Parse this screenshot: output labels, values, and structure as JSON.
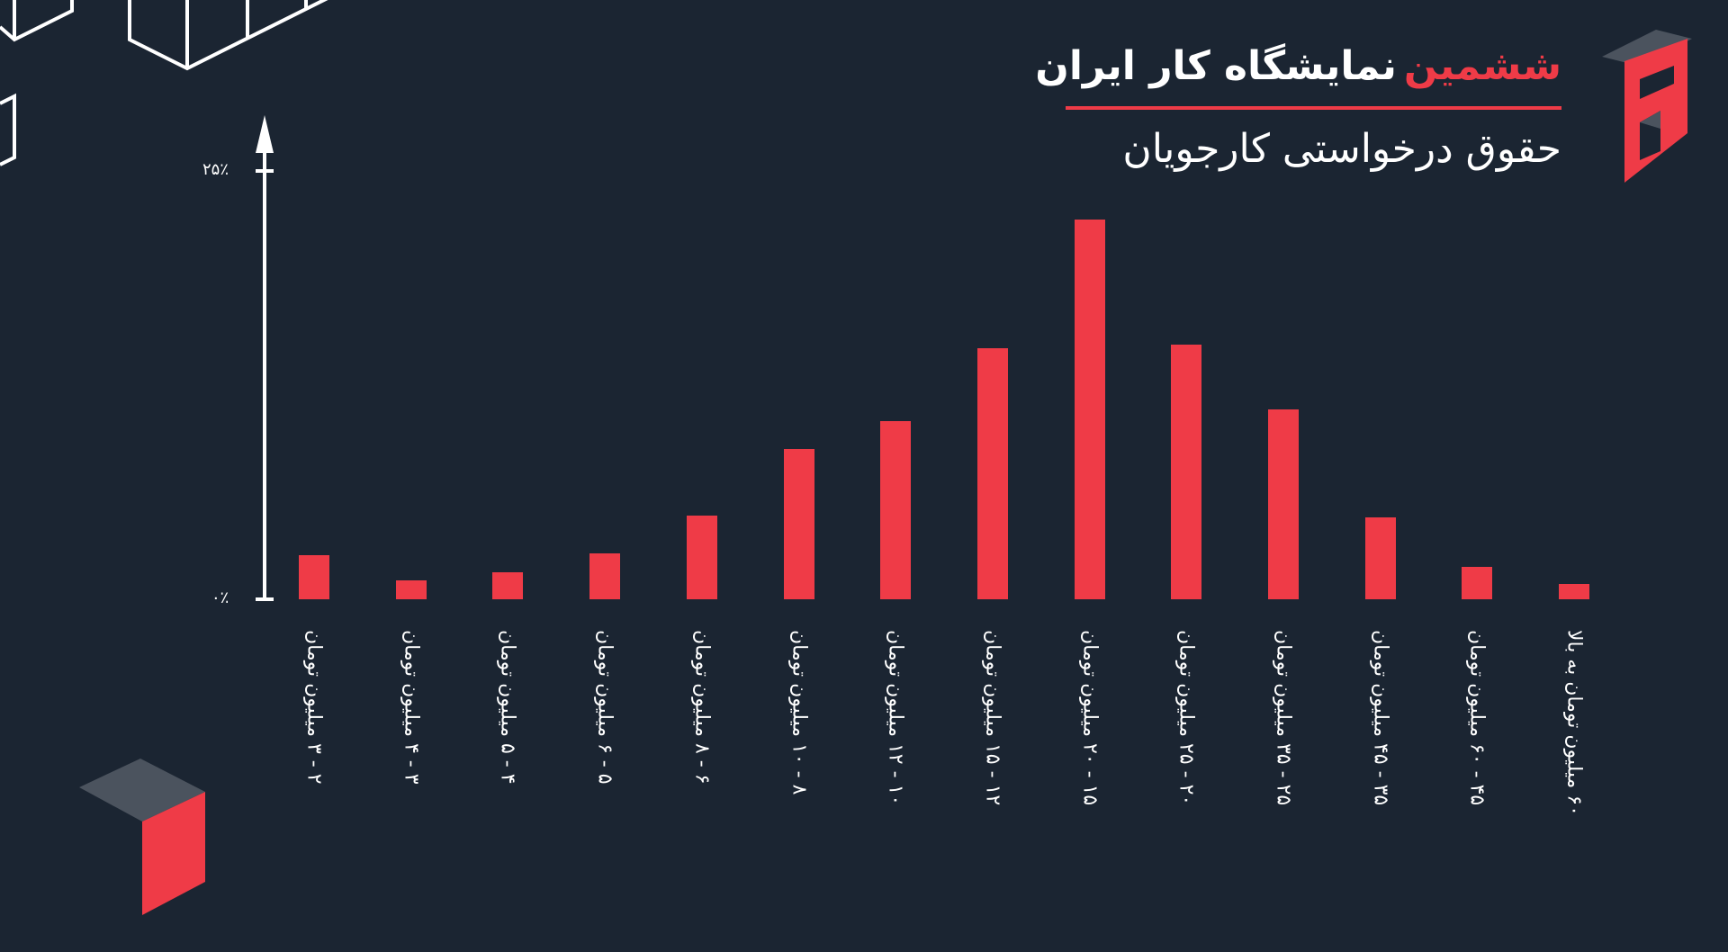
{
  "header": {
    "title_accent": "ششمین",
    "title_main": "نمایشگاه کار ایران",
    "subtitle": "حقوق درخواستی کارجویان",
    "logo_glyph": "6"
  },
  "colors": {
    "background": "#1b2532",
    "accent": "#ef3b47",
    "gray": "#4b535e",
    "text": "#ffffff"
  },
  "axis": {
    "y_top_label": "۲۵٪",
    "y_bottom_label": "۰٪"
  },
  "chart_data": {
    "type": "bar",
    "title": "ششمین نمایشگاه کار ایران — حقوق درخواستی کارجویان",
    "xlabel": "",
    "ylabel": "درصد",
    "ylim": [
      0,
      25
    ],
    "yticks": [
      "۰٪",
      "۲۵٪"
    ],
    "grid": false,
    "legend": null,
    "categories": [
      "۲ - ۳ میلیون تومان",
      "۳ - ۴ میلیون تومان",
      "۴ - ۵ میلیون تومان",
      "۵ - ۶ میلیون تومان",
      "۶ - ۸ میلیون تومان",
      "۸ - ۱۰ میلیون تومان",
      "۱۰ - ۱۲ میلیون تومان",
      "۱۲ - ۱۵ میلیون تومان",
      "۱۵ - ۲۰ میلیون تومان",
      "۲۰ - ۲۵ میلیون تومان",
      "۲۵ - ۳۵ میلیون تومان",
      "۳۵ - ۴۵ میلیون تومان",
      "۴۵ - ۶۰ میلیون تومان",
      "۶۰ میلیون تومان به بالا"
    ],
    "values": [
      2.6,
      1.1,
      1.6,
      2.7,
      4.9,
      8.8,
      10.4,
      14.7,
      22.2,
      14.9,
      11.1,
      4.8,
      1.9,
      0.9
    ]
  }
}
